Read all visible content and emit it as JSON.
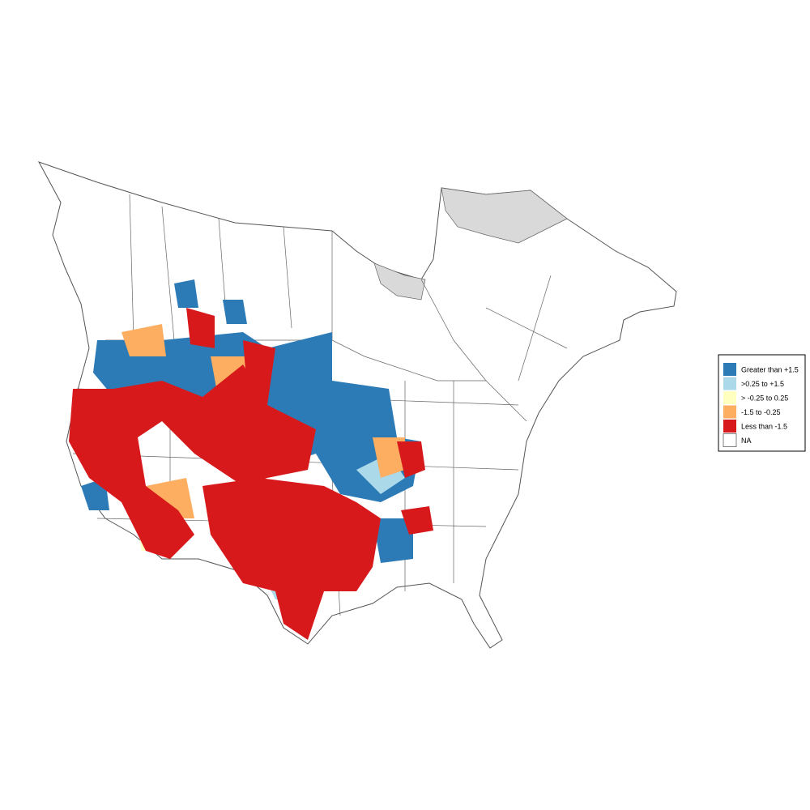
{
  "legend": {
    "entries": [
      {
        "label": "Greater than +1.5",
        "color": "#2c7bb6"
      },
      {
        "label": ">0.25 to +1.5",
        "color": "#abd9e9"
      },
      {
        "label": "> -0.25 to 0.25",
        "color": "#ffffbf"
      },
      {
        "label": "-1.5 to -0.25",
        "color": "#fdae61"
      },
      {
        "label": "Less than -1.5",
        "color": "#d7191c"
      },
      {
        "label": "NA",
        "color": "#ffffff"
      }
    ]
  }
}
